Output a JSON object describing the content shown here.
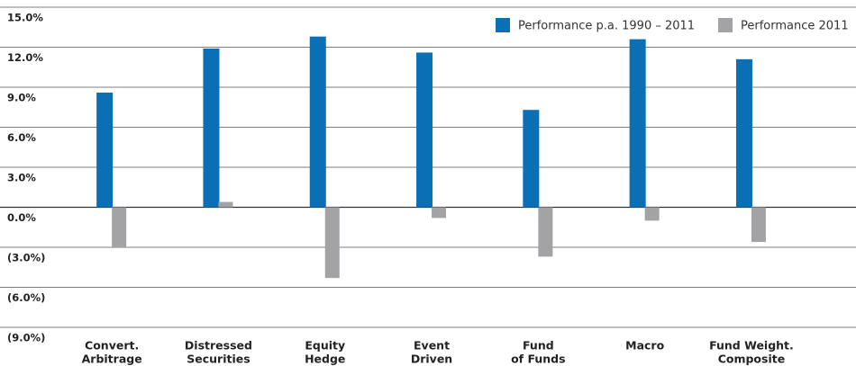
{
  "chart_data": {
    "type": "bar",
    "categories": [
      [
        "Convert.",
        "Arbitrage"
      ],
      [
        "Distressed",
        "Securities"
      ],
      [
        "Equity",
        "Hedge"
      ],
      [
        "Event",
        "Driven"
      ],
      [
        "Fund",
        "of Funds"
      ],
      [
        "Macro"
      ],
      [
        "Fund Weight.",
        "Composite"
      ]
    ],
    "series": [
      {
        "name": "Performance p.a. 1990 – 2011",
        "color": "#0a6fb5",
        "values": [
          8.6,
          11.9,
          12.8,
          11.6,
          7.3,
          12.6,
          11.1
        ]
      },
      {
        "name": "Performance 2011",
        "color": "#a3a3a5",
        "values": [
          -3.0,
          0.4,
          -5.3,
          -0.8,
          -3.7,
          -1.0,
          -2.6
        ]
      }
    ],
    "ylim": [
      -9,
      15
    ],
    "yticks": [
      {
        "value": -9,
        "label": "(9.0%)"
      },
      {
        "value": -6,
        "label": "(6.0%)"
      },
      {
        "value": -3,
        "label": "(3.0%)"
      },
      {
        "value": 0,
        "label": "0.0%"
      },
      {
        "value": 3,
        "label": "3.0%"
      },
      {
        "value": 6,
        "label": "6.0%"
      },
      {
        "value": 9,
        "label": "9.0%"
      },
      {
        "value": 12,
        "label": "12.0%"
      },
      {
        "value": 15,
        "label": "15.0%"
      }
    ],
    "grid": true,
    "legend": "top-right"
  }
}
